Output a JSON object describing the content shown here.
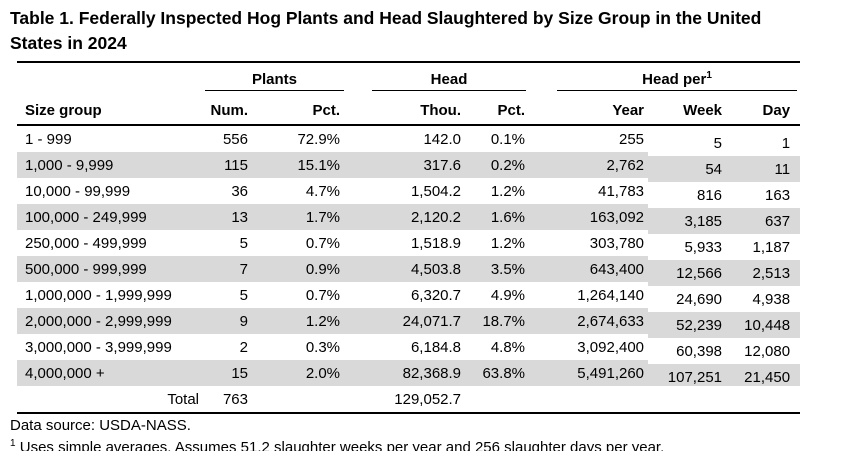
{
  "page": {
    "title": "Table 1. Federally Inspected Hog Plants and Head Slaughtered by Size Group in the United States in 2024"
  },
  "chart_data": {
    "type": "table",
    "title": "Table 1. Federally Inspected Hog Plants and Head Slaughtered by Size Group in the United States in 2024",
    "group_headers": [
      {
        "label": "Plants",
        "colspan": 2
      },
      {
        "label": "Head",
        "colspan": 2
      },
      {
        "label": "Head per",
        "footnote_marker": "1",
        "colspan": 3
      }
    ],
    "columns": [
      "Size group",
      "Num.",
      "Pct.",
      "Thou.",
      "Pct.",
      "Year",
      "Week",
      "Day"
    ],
    "rows": [
      [
        "1 - 999",
        "556",
        "72.9%",
        "142.0",
        "0.1%",
        "255",
        "5",
        "1"
      ],
      [
        "1,000 - 9,999",
        "115",
        "15.1%",
        "317.6",
        "0.2%",
        "2,762",
        "54",
        "11"
      ],
      [
        "10,000 - 99,999",
        "36",
        "4.7%",
        "1,504.2",
        "1.2%",
        "41,783",
        "816",
        "163"
      ],
      [
        "100,000 - 249,999",
        "13",
        "1.7%",
        "2,120.2",
        "1.6%",
        "163,092",
        "3,185",
        "637"
      ],
      [
        "250,000 - 499,999",
        "5",
        "0.7%",
        "1,518.9",
        "1.2%",
        "303,780",
        "5,933",
        "1,187"
      ],
      [
        "500,000 - 999,999",
        "7",
        "0.9%",
        "4,503.8",
        "3.5%",
        "643,400",
        "12,566",
        "2,513"
      ],
      [
        "1,000,000 - 1,999,999",
        "5",
        "0.7%",
        "6,320.7",
        "4.9%",
        "1,264,140",
        "24,690",
        "4,938"
      ],
      [
        "2,000,000 - 2,999,999",
        "9",
        "1.2%",
        "24,071.7",
        "18.7%",
        "2,674,633",
        "52,239",
        "10,448"
      ],
      [
        "3,000,000 - 3,999,999",
        "2",
        "0.3%",
        "6,184.8",
        "4.8%",
        "3,092,400",
        "60,398",
        "12,080"
      ],
      [
        "4,000,000 +",
        "15",
        "2.0%",
        "82,368.9",
        "63.8%",
        "5,491,260",
        "107,251",
        "21,450"
      ]
    ],
    "total_row": {
      "label": "Total",
      "plants_num": "763",
      "head_thou": "129,052.7"
    }
  },
  "footer": {
    "data_source": "Data source: USDA-NASS.",
    "footnote_marker": "1",
    "footnote_text": "Uses simple averages. Assumes 51.2 slaughter weeks per year and 256 slaughter days per year."
  },
  "colors": {
    "row_stripe": "#d9d9d9",
    "text": "#000000",
    "background": "#ffffff"
  }
}
